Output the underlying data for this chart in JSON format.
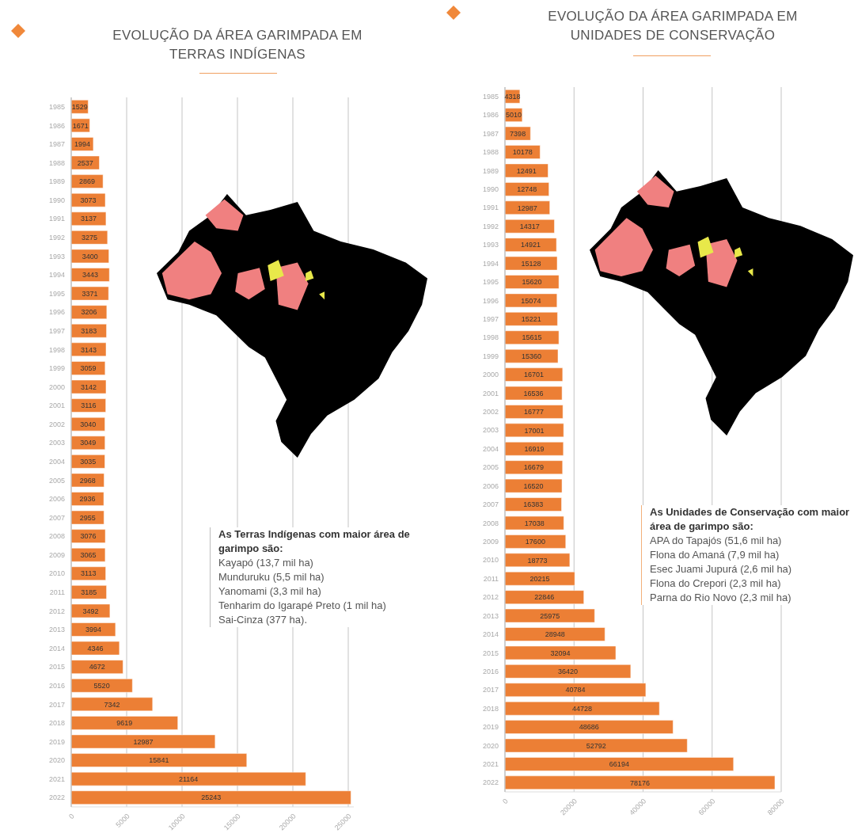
{
  "chart_data": [
    {
      "type": "bar",
      "orientation": "horizontal",
      "title": "EVOLUÇÃO DA ÁREA GARIMPADA EM TERRAS INDÍGENAS",
      "categories": [
        "1985",
        "1986",
        "1987",
        "1988",
        "1989",
        "1990",
        "1991",
        "1992",
        "1993",
        "1994",
        "1995",
        "1996",
        "1997",
        "1998",
        "1999",
        "2000",
        "2001",
        "2002",
        "2003",
        "2004",
        "2005",
        "2006",
        "2007",
        "2008",
        "2009",
        "2010",
        "2011",
        "2012",
        "2013",
        "2014",
        "2015",
        "2016",
        "2017",
        "2018",
        "2019",
        "2020",
        "2021",
        "2022"
      ],
      "values": [
        1529,
        1671,
        1994,
        2537,
        2869,
        3073,
        3137,
        3275,
        3400,
        3443,
        3371,
        3206,
        3183,
        3143,
        3059,
        3142,
        3116,
        3040,
        3049,
        3035,
        2968,
        2936,
        2955,
        3076,
        3065,
        3113,
        3185,
        3492,
        3994,
        4346,
        4672,
        5520,
        7342,
        9619,
        12987,
        15841,
        21164,
        25243
      ],
      "color": "#ec7f35",
      "xlim": [
        0,
        25500
      ],
      "xticks": [
        0,
        5000,
        10000,
        15000,
        20000,
        25000
      ],
      "grid": "x",
      "data_labels": true,
      "annotations": [
        "As Terras Indígenas com maior área de garimpo são:",
        "Kayapó (13,7 mil ha)",
        "Munduruku (5,5 mil ha)",
        "Yanomami (3,3 mil ha)",
        "Tenharim do Igarapé Preto (1 mil ha)",
        "Sai-Cinza (377 ha)."
      ]
    },
    {
      "type": "bar",
      "orientation": "horizontal",
      "title": "EVOLUÇÃO DA ÁREA GARIMPADA EM UNIDADES DE CONSERVAÇÃO",
      "categories": [
        "1985",
        "1986",
        "1987",
        "1988",
        "1989",
        "1990",
        "1991",
        "1992",
        "1993",
        "1994",
        "1995",
        "1996",
        "1997",
        "1998",
        "1999",
        "2000",
        "2001",
        "2002",
        "2003",
        "2004",
        "2005",
        "2006",
        "2007",
        "2008",
        "2009",
        "2010",
        "2011",
        "2012",
        "2013",
        "2014",
        "2015",
        "2016",
        "2017",
        "2018",
        "2019",
        "2020",
        "2021",
        "2022"
      ],
      "values": [
        4318,
        5010,
        7398,
        10178,
        12491,
        12748,
        12987,
        14317,
        14921,
        15128,
        15620,
        15074,
        15221,
        15615,
        15360,
        16701,
        16536,
        16777,
        17001,
        16919,
        16679,
        16520,
        16383,
        17038,
        17600,
        18773,
        20215,
        22846,
        25975,
        28948,
        32094,
        36420,
        40784,
        44728,
        48686,
        52792,
        66194,
        78176
      ],
      "color": "#ec7f35",
      "xlim": [
        0,
        80000
      ],
      "xticks": [
        0,
        20000,
        40000,
        60000,
        80000
      ],
      "grid": "x",
      "data_labels": true,
      "annotations": [
        "As Unidades de Conservação com maior área de garimpo são:",
        "APA do Tapajós (51,6 mil ha)",
        "Flona do Amaná (7,9 mil ha)",
        "Esec Juami Jupurá (2,6 mil ha)",
        "Flona do Crepori (2,3 mil ha)",
        "Parna do Rio Novo (2,3 mil ha)"
      ]
    }
  ]
}
